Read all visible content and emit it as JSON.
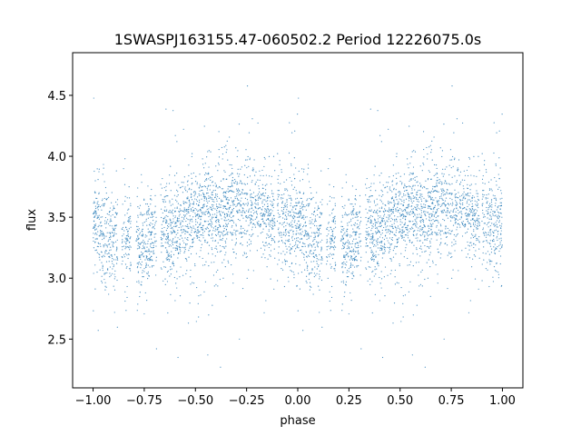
{
  "chart_data": {
    "type": "scatter",
    "title": "1SWASPJ163155.47-060502.2 Period 12226075.0s",
    "xlabel": "phase",
    "ylabel": "flux",
    "xlim": [
      -1.1,
      1.1
    ],
    "ylim": [
      2.1,
      4.85
    ],
    "xticks": [
      -1.0,
      -0.75,
      -0.5,
      -0.25,
      0.0,
      0.25,
      0.5,
      0.75,
      1.0
    ],
    "xtick_labels": [
      "−1.00",
      "−0.75",
      "−0.50",
      "−0.25",
      "0.00",
      "0.25",
      "0.50",
      "0.75",
      "1.00"
    ],
    "yticks": [
      2.5,
      3.0,
      3.5,
      4.0,
      4.5
    ],
    "ytick_labels": [
      "2.5",
      "3.0",
      "3.5",
      "4.0",
      "4.5"
    ],
    "grid": false,
    "marker_color": "#1f77b4",
    "phase_range": [
      -1.0,
      1.0
    ],
    "flux_range": [
      2.2,
      4.7
    ],
    "profile": [
      {
        "phase": 0.0,
        "flux": 3.45
      },
      {
        "phase": 0.05,
        "flux": 3.35
      },
      {
        "phase": 0.1,
        "flux": 3.3
      },
      {
        "phase": 0.15,
        "flux": 3.28
      },
      {
        "phase": 0.2,
        "flux": 3.25
      },
      {
        "phase": 0.25,
        "flux": 3.28
      },
      {
        "phase": 0.3,
        "flux": 3.32
      },
      {
        "phase": 0.35,
        "flux": 3.35
      },
      {
        "phase": 0.4,
        "flux": 3.38
      },
      {
        "phase": 0.45,
        "flux": 3.45
      },
      {
        "phase": 0.5,
        "flux": 3.52
      },
      {
        "phase": 0.55,
        "flux": 3.55
      },
      {
        "phase": 0.6,
        "flux": 3.5
      },
      {
        "phase": 0.65,
        "flux": 3.52
      },
      {
        "phase": 0.7,
        "flux": 3.6
      },
      {
        "phase": 0.75,
        "flux": 3.58
      },
      {
        "phase": 0.8,
        "flux": 3.55
      },
      {
        "phase": 0.85,
        "flux": 3.5
      },
      {
        "phase": 0.9,
        "flux": 3.48
      },
      {
        "phase": 0.95,
        "flux": 3.42
      },
      {
        "phase": 1.0,
        "flux": 3.45
      }
    ],
    "gaps": [
      [
        0.12,
        0.14
      ],
      [
        0.19,
        0.21
      ],
      [
        0.31,
        0.33
      ],
      [
        0.89,
        0.9
      ],
      [
        0.185,
        0.19
      ]
    ]
  }
}
